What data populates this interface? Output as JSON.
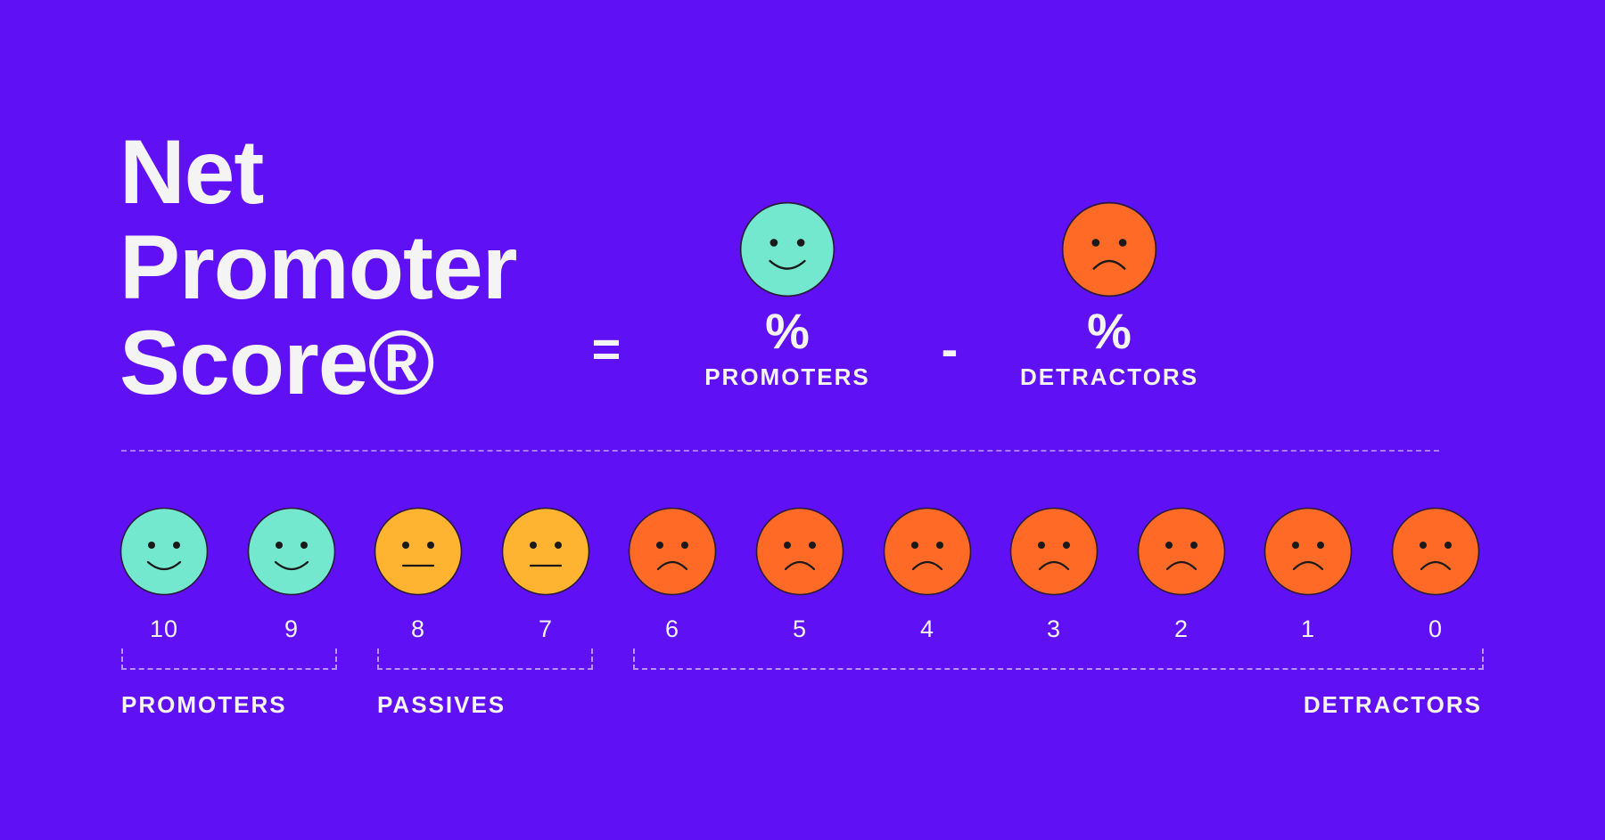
{
  "title": {
    "line1": "Net",
    "line2": "Promoter",
    "line3": "Score®"
  },
  "formula": {
    "equals": "=",
    "minus": "-",
    "promoters": {
      "pct": "%",
      "label": "PROMOTERS",
      "icon": "happy-face-icon"
    },
    "detractors": {
      "pct": "%",
      "label": "DETRACTORS",
      "icon": "sad-face-icon"
    }
  },
  "scale": [
    {
      "score": "10",
      "mood": "happy"
    },
    {
      "score": "9",
      "mood": "happy"
    },
    {
      "score": "8",
      "mood": "neutral"
    },
    {
      "score": "7",
      "mood": "neutral"
    },
    {
      "score": "6",
      "mood": "sad"
    },
    {
      "score": "5",
      "mood": "sad"
    },
    {
      "score": "4",
      "mood": "sad"
    },
    {
      "score": "3",
      "mood": "sad"
    },
    {
      "score": "2",
      "mood": "sad"
    },
    {
      "score": "1",
      "mood": "sad"
    },
    {
      "score": "0",
      "mood": "sad"
    }
  ],
  "groups": {
    "promoters": "PROMOTERS",
    "passives": "PASSIVES",
    "detractors": "DETRACTORS"
  },
  "colors": {
    "background": "#6010F5",
    "happy": "#73E8CF",
    "neutral": "#FFB431",
    "sad": "#FF6B27",
    "outline": "#2a1a3a",
    "text": "#f4f4f4"
  }
}
